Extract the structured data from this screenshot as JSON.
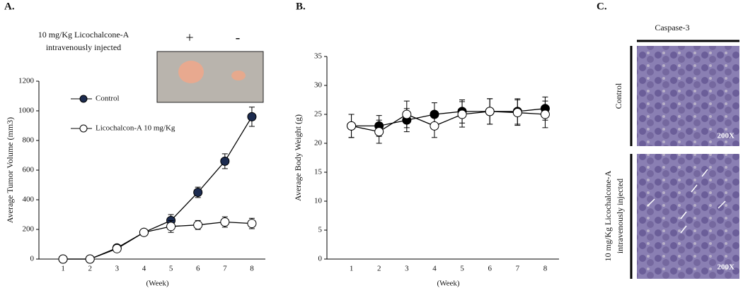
{
  "panel_labels": [
    "A.",
    "B.",
    "C."
  ],
  "photo": {
    "annotation": [
      "10 mg/Kg Licochalcone-A",
      "intravenously injected"
    ],
    "plus": "+",
    "minus": "-"
  },
  "histology": {
    "title": "Caspase-3",
    "rows": [
      {
        "label": [
          "Control"
        ],
        "magnification": "200X"
      },
      {
        "label": [
          "10 mg/Kg Licochalcone-A",
          "intravenously injected"
        ],
        "magnification": "200X"
      }
    ]
  },
  "chart_data": [
    {
      "type": "line",
      "ylabel": "Average Tumor Volume (mm3)",
      "xlabel": "(Week)",
      "categories": [
        "1",
        "2",
        "3",
        "4",
        "5",
        "6",
        "7",
        "8"
      ],
      "ylim": [
        0,
        1200
      ],
      "yticks": [
        0,
        200,
        400,
        600,
        800,
        1000,
        1200
      ],
      "legend": "upper left",
      "series": [
        {
          "name": "Control",
          "color": "#1c2b4f",
          "values": [
            0,
            0,
            75,
            180,
            260,
            450,
            660,
            960
          ],
          "errors": [
            0,
            0,
            10,
            15,
            40,
            35,
            50,
            65
          ]
        },
        {
          "name": "Licochalcon-A 10 mg/Kg",
          "color": "#ffffff",
          "values": [
            0,
            0,
            70,
            180,
            220,
            230,
            250,
            240
          ],
          "errors": [
            0,
            0,
            10,
            15,
            40,
            30,
            35,
            35
          ]
        }
      ]
    },
    {
      "type": "line",
      "ylabel": "Average Body Weight (g)",
      "xlabel": "(Week)",
      "categories": [
        "1",
        "2",
        "3",
        "4",
        "5",
        "6",
        "7",
        "8"
      ],
      "ylim": [
        0,
        35
      ],
      "yticks": [
        0,
        5,
        10,
        15,
        20,
        25,
        30,
        35
      ],
      "series": [
        {
          "color": "#000000",
          "values": [
            23,
            23,
            24,
            25,
            25.5,
            25.5,
            25.5,
            26
          ],
          "errors": [
            2,
            1.8,
            2,
            2,
            2,
            2.2,
            2.2,
            2
          ]
        },
        {
          "color": "#ffffff",
          "values": [
            23,
            22,
            25,
            23,
            25,
            25.5,
            25.3,
            25
          ],
          "errors": [
            2,
            2,
            2.3,
            2,
            2.2,
            2.2,
            2.2,
            2.3
          ]
        }
      ]
    }
  ]
}
